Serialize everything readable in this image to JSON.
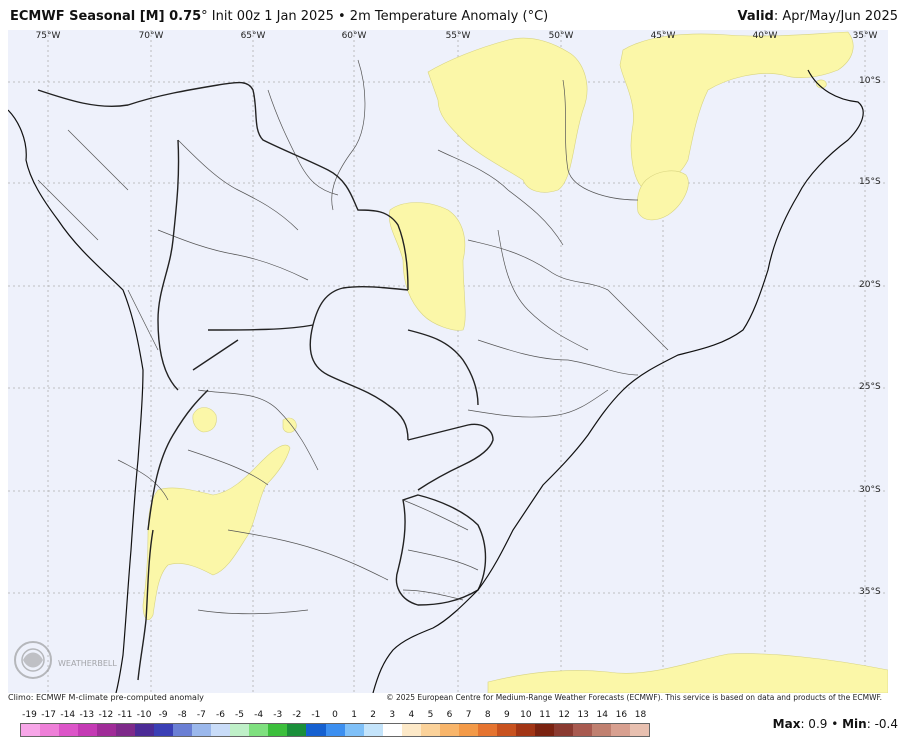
{
  "header": {
    "title_bold": "ECMWF Seasonal [M] 0.75",
    "title_deg": "°",
    "title_rest": " Init 00z 1 Jan 2025 • 2m Temperature Anomaly (°C)",
    "valid_bold": "Valid",
    "valid_rest": ": Apr/May/Jun 2025"
  },
  "map": {
    "lon_labels": [
      "75°W",
      "70°W",
      "65°W",
      "60°W",
      "55°W",
      "50°W",
      "45°W",
      "40°W",
      "35°W"
    ],
    "lat_labels": [
      "10°S",
      "15°S",
      "20°S",
      "25°S",
      "30°S",
      "35°S"
    ],
    "colors": {
      "background": "#eef1fb",
      "anomaly_fill": "#fbf7a8",
      "border": "#222222",
      "grid": "#b0b0b0"
    },
    "watermark": "WEATHERBELL"
  },
  "footer": {
    "climo": "Climo: ECMWF M-climate pre-computed anomaly",
    "copyright": "© 2025 European Centre for Medium-Range Weather Forecasts (ECMWF). This service is based on data and products of the ECMWF."
  },
  "colorbar": {
    "labels": [
      "-19",
      "-17",
      "-14",
      "-13",
      "-12",
      "-11",
      "-10",
      "-9",
      "-8",
      "-7",
      "-6",
      "-5",
      "-4",
      "-3",
      "-2",
      "-1",
      "0",
      "1",
      "2",
      "3",
      "4",
      "5",
      "6",
      "7",
      "8",
      "9",
      "10",
      "11",
      "12",
      "13",
      "14",
      "16",
      "18"
    ],
    "colors": [
      "#f7a6e8",
      "#ee7fd8",
      "#dc55c8",
      "#c43ab4",
      "#a02c98",
      "#7e2a8a",
      "#4b2b96",
      "#3a3fb5",
      "#6a7fd4",
      "#9bb8ec",
      "#c9dcf8",
      "#bff0c8",
      "#7fe07f",
      "#3cbf3c",
      "#1a8f3a",
      "#1560d0",
      "#3c8ff0",
      "#7fc0f8",
      "#c4e4fb",
      "#ffffff",
      "#fde9c8",
      "#fbd29a",
      "#f8b56a",
      "#f39a48",
      "#e57430",
      "#c8521f",
      "#a23515",
      "#7a2210",
      "#8a3a30",
      "#a85a50",
      "#c08070",
      "#d8a090",
      "#e8c0b0"
    ]
  },
  "stats": {
    "max_label": "Max",
    "max_value": ": 0.9 • ",
    "min_label": "Min",
    "min_value": ": -0.4"
  }
}
